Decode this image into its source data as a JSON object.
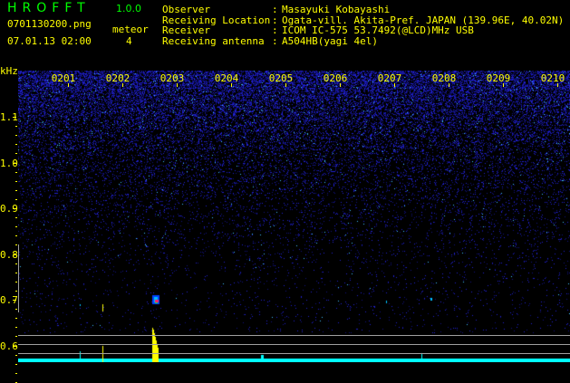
{
  "app": {
    "title": "HROFFT",
    "version": "1.0.0"
  },
  "file": {
    "name": "0701130200.png",
    "datetime": "07.01.13 02:00"
  },
  "meteor": {
    "label": "meteor",
    "count": "4"
  },
  "info": [
    {
      "label": "Observer",
      "value": "Masayuki Kobayashi"
    },
    {
      "label": "Receiving Location",
      "value": "Ogata-vill. Akita-Pref. JAPAN (139.96E, 40.02N)"
    },
    {
      "label": "Receiver",
      "value": "ICOM IC-575 53.7492(@LCD)MHz USB"
    },
    {
      "label": "Receiving antenna",
      "value": "A504HB(yagi 4el)"
    }
  ],
  "axis": {
    "unit": "kHz",
    "freq_labels": [
      "1.1",
      "1.0",
      "0.9",
      "0.8",
      "0.7",
      "0.6"
    ],
    "time_labels": [
      "0201",
      "0202",
      "0203",
      "0204",
      "0205",
      "0206",
      "0207",
      "0208",
      "0209",
      "0210"
    ]
  },
  "colors": {
    "text": "#ffff00",
    "title": "#00ff00",
    "noise": "#2020ff",
    "histogram": "#00ffff"
  }
}
